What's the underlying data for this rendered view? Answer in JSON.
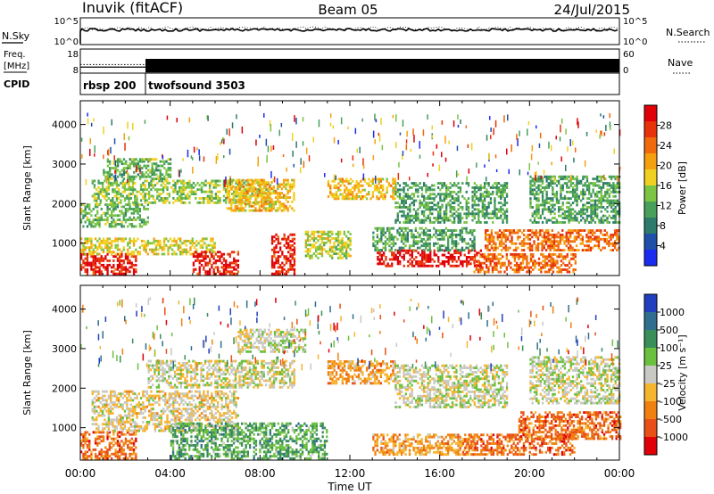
{
  "header": {
    "station": "Inuvik (fitACF)",
    "beam": "Beam 05",
    "date": "24/Jul/2015"
  },
  "noise_panel": {
    "left_label": "N.Sky",
    "right_label": "N.Search",
    "left_ticks": [
      "10^5",
      "10^0"
    ],
    "right_ticks": [
      "10^5",
      "10^0"
    ]
  },
  "freq_panel": {
    "left_label": "Freq.",
    "left_unit": "[MHz]",
    "right_label": "Nave",
    "left_ticks": [
      "18",
      "8"
    ],
    "right_ticks": [
      "60",
      "0"
    ],
    "freq_MHz": 10.5,
    "nave_early": 17,
    "nave_late": 60
  },
  "cpid_panel": {
    "label": "CPID",
    "modes": [
      {
        "name": "rbsp 200",
        "start_hour": 0.0,
        "end_hour": 2.9
      },
      {
        "name": "twofsound 3503",
        "start_hour": 2.9,
        "end_hour": 24.0
      }
    ]
  },
  "x_axis": {
    "label": "Time UT",
    "ticks": [
      "00:00",
      "04:00",
      "08:00",
      "12:00",
      "16:00",
      "20:00",
      "00:00"
    ]
  },
  "chart_data": [
    {
      "type": "heatmap",
      "name": "power",
      "xlabel": "Time UT",
      "ylabel": "Slant Range [km]",
      "xlim": [
        0,
        24
      ],
      "ylim": [
        180,
        4600
      ],
      "y_ticks": [
        "1000",
        "2000",
        "3000",
        "4000"
      ],
      "colorbar_label": "Power [dB]",
      "colorbar_ticks": [
        "4",
        "8",
        "12",
        "16",
        "20",
        "24",
        "28"
      ],
      "colors": [
        "#1a2cf0",
        "#1f4fa8",
        "#2e7b6b",
        "#48a05a",
        "#7cc444",
        "#f0d020",
        "#f5a011",
        "#f06a0c",
        "#e8320a",
        "#e00008"
      ],
      "bands": [
        {
          "t0": 0.0,
          "t1": 2.5,
          "r0": 200,
          "r1": 700,
          "level": 8.5
        },
        {
          "t0": 0.0,
          "t1": 6.0,
          "r0": 700,
          "r1": 1100,
          "level": 5
        },
        {
          "t0": 0.0,
          "t1": 3.0,
          "r0": 1400,
          "r1": 2000,
          "level": 3.5
        },
        {
          "t0": 0.5,
          "t1": 8.5,
          "r0": 2000,
          "r1": 2600,
          "level": 4
        },
        {
          "t0": 1.0,
          "t1": 4.0,
          "r0": 2600,
          "r1": 3100,
          "level": 3.5
        },
        {
          "t0": 5.0,
          "t1": 7.0,
          "r0": 200,
          "r1": 800,
          "level": 8.5
        },
        {
          "t0": 6.5,
          "t1": 9.5,
          "r0": 1800,
          "r1": 2600,
          "level": 5.5
        },
        {
          "t0": 8.5,
          "t1": 9.5,
          "r0": 200,
          "r1": 1200,
          "level": 8.5
        },
        {
          "t0": 10.0,
          "t1": 12.0,
          "r0": 600,
          "r1": 1300,
          "level": 4.5
        },
        {
          "t0": 11.0,
          "t1": 14.0,
          "r0": 2100,
          "r1": 2600,
          "level": 5.5
        },
        {
          "t0": 13.2,
          "t1": 17.8,
          "r0": 400,
          "r1": 800,
          "level": 9
        },
        {
          "t0": 13.0,
          "t1": 17.5,
          "r0": 800,
          "r1": 1400,
          "level": 3
        },
        {
          "t0": 14.0,
          "t1": 19.0,
          "r0": 1500,
          "r1": 2500,
          "level": 3
        },
        {
          "t0": 17.5,
          "t1": 22.0,
          "r0": 250,
          "r1": 700,
          "level": 7
        },
        {
          "t0": 18.0,
          "t1": 24.0,
          "r0": 800,
          "r1": 1300,
          "level": 7
        },
        {
          "t0": 20.0,
          "t1": 24.0,
          "r0": 1500,
          "r1": 2700,
          "level": 3
        }
      ]
    },
    {
      "type": "heatmap",
      "name": "velocity",
      "xlabel": "Time UT",
      "ylabel": "Slant Range [km]",
      "xlim": [
        0,
        24
      ],
      "ylim": [
        180,
        4600
      ],
      "y_ticks": [
        "1000",
        "2000",
        "3000",
        "4000"
      ],
      "colorbar_label": "Velocity [m s⁻¹]",
      "colorbar_ticks": [
        "1000",
        "500",
        "100",
        "25",
        "-25",
        "-100",
        "-500",
        "-1000"
      ],
      "colors": [
        "#2040c0",
        "#2f6e8e",
        "#3a8e5a",
        "#6cc040",
        "#c8c8c4",
        "#f5b530",
        "#f08010",
        "#e85018",
        "#e00008"
      ],
      "bands": [
        {
          "t0": 0.0,
          "t1": 2.5,
          "r0": 200,
          "r1": 900,
          "level": 6.5
        },
        {
          "t0": 0.5,
          "t1": 7.0,
          "r0": 900,
          "r1": 1900,
          "level": 4.5
        },
        {
          "t0": 3.0,
          "t1": 9.5,
          "r0": 2000,
          "r1": 2700,
          "level": 4
        },
        {
          "t0": 4.0,
          "t1": 11.0,
          "r0": 200,
          "r1": 1100,
          "level": 2.5
        },
        {
          "t0": 7.0,
          "t1": 10.0,
          "r0": 2900,
          "r1": 3500,
          "level": 4
        },
        {
          "t0": 11.0,
          "t1": 14.0,
          "r0": 2100,
          "r1": 2700,
          "level": 5.5
        },
        {
          "t0": 13.0,
          "t1": 17.5,
          "r0": 300,
          "r1": 800,
          "level": 5.5
        },
        {
          "t0": 14.0,
          "t1": 19.0,
          "r0": 1500,
          "r1": 2600,
          "level": 4
        },
        {
          "t0": 17.0,
          "t1": 22.0,
          "r0": 300,
          "r1": 800,
          "level": 6.5
        },
        {
          "t0": 19.5,
          "t1": 24.0,
          "r0": 700,
          "r1": 1400,
          "level": 6.5
        },
        {
          "t0": 20.0,
          "t1": 24.0,
          "r0": 1600,
          "r1": 2800,
          "level": 4
        }
      ]
    }
  ]
}
